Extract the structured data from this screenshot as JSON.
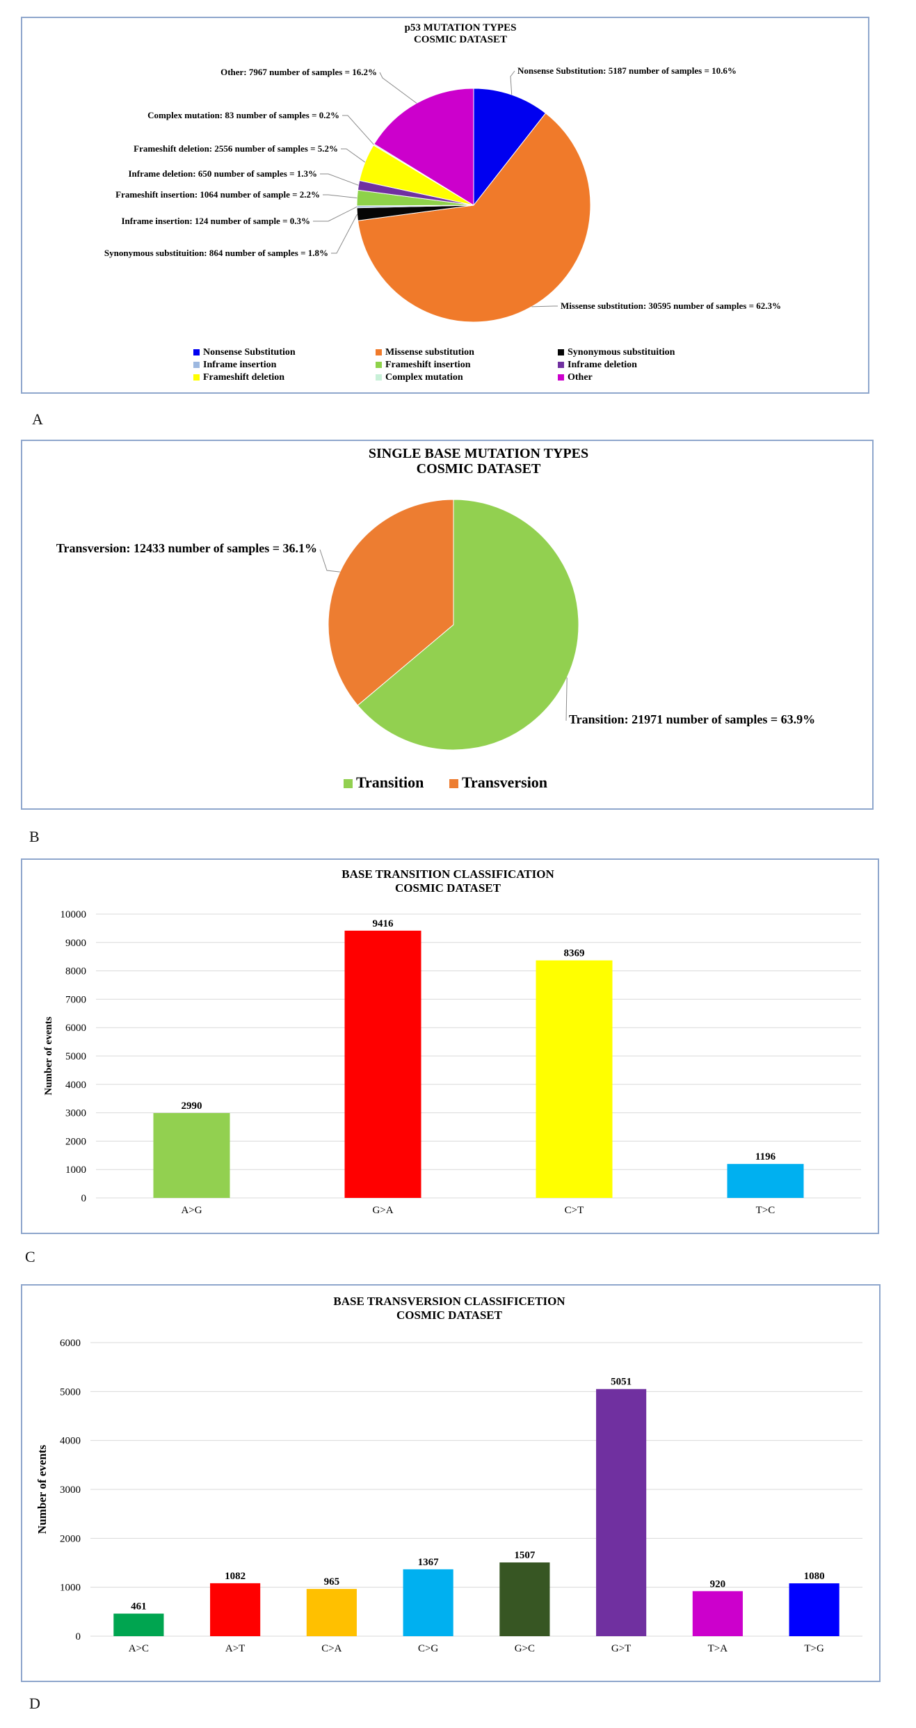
{
  "panel_labels": [
    "A",
    "B",
    "C",
    "D"
  ],
  "chart_data": [
    {
      "type": "pie",
      "title": "p53 MUTATION TYPES",
      "subtitle": "COSMIC DATASET",
      "legend_position": "bottom",
      "slices": [
        {
          "name": "Nonsense Substitution",
          "value": 5187,
          "percent": 10.6,
          "color": "#0000f0",
          "label": "Nonsense Substitution: 5187 number of samples = 10.6%"
        },
        {
          "name": "Missense substitution",
          "value": 30595,
          "percent": 62.3,
          "color": "#f07a2a",
          "label": "Missense substitution: 30595 number of samples = 62.3%"
        },
        {
          "name": "Synonymous substituition",
          "value": 864,
          "percent": 1.8,
          "color": "#050505",
          "label": "Synonymous substituition: 864 number of samples = 1.8%"
        },
        {
          "name": "Inframe insertion",
          "value": 124,
          "percent": 0.3,
          "color": "#9db8e0",
          "label": "Inframe insertion: 124 number of sample = 0.3%"
        },
        {
          "name": "Frameshift insertion",
          "value": 1064,
          "percent": 2.2,
          "color": "#8ed24a",
          "label": "Frameshift insertion: 1064 number of sample = 2.2%"
        },
        {
          "name": "Inframe deletion",
          "value": 650,
          "percent": 1.3,
          "color": "#7030a0",
          "label": "Inframe deletion: 650 number of samples = 1.3%"
        },
        {
          "name": "Frameshift deletion",
          "value": 2556,
          "percent": 5.2,
          "color": "#ffff00",
          "label": "Frameshift deletion: 2556 number of samples = 5.2%"
        },
        {
          "name": "Complex mutation",
          "value": 83,
          "percent": 0.2,
          "color": "#c8f0d8",
          "label": "Complex mutation: 83 number of samples = 0.2%"
        },
        {
          "name": "Other",
          "value": 7967,
          "percent": 16.2,
          "color": "#cc00cc",
          "label": "Other: 7967 number of samples = 16.2%"
        }
      ]
    },
    {
      "type": "pie",
      "title": "SINGLE BASE MUTATION TYPES",
      "subtitle": "COSMIC DATASET",
      "legend_position": "bottom",
      "slices": [
        {
          "name": "Transition",
          "value": 21971,
          "percent": 63.9,
          "color": "#92d050",
          "label": "Transition: 21971 number of samples = 63.9%"
        },
        {
          "name": "Transversion",
          "value": 12433,
          "percent": 36.1,
          "color": "#ed7d31",
          "label": "Transversion: 12433 number of samples = 36.1%"
        }
      ]
    },
    {
      "type": "bar",
      "title": "BASE TRANSITION CLASSIFICATION",
      "subtitle": "COSMIC DATASET",
      "ylabel": "Number of events",
      "xlabel": "",
      "ylim": [
        0,
        10000
      ],
      "yticks": [
        0,
        1000,
        2000,
        3000,
        4000,
        5000,
        6000,
        7000,
        8000,
        9000,
        10000
      ],
      "grid": true,
      "categories": [
        "A>G",
        "G>A",
        "C>T",
        "T>C"
      ],
      "values": [
        2990,
        9416,
        8369,
        1196
      ],
      "colors": [
        "#92d050",
        "#ff0000",
        "#ffff00",
        "#00b0f0"
      ]
    },
    {
      "type": "bar",
      "title": "BASE TRANSVERSION CLASSIFICETION",
      "subtitle": "COSMIC DATASET",
      "ylabel": "Number of events",
      "xlabel": "",
      "ylim": [
        0,
        6000
      ],
      "yticks": [
        0,
        1000,
        2000,
        3000,
        4000,
        5000,
        6000
      ],
      "grid": true,
      "categories": [
        "A>C",
        "A>T",
        "C>A",
        "C>G",
        "G>C",
        "G>T",
        "T>A",
        "T>G"
      ],
      "values": [
        461,
        1082,
        965,
        1367,
        1507,
        5051,
        920,
        1080
      ],
      "colors": [
        "#00a550",
        "#ff0000",
        "#ffc000",
        "#00b0f0",
        "#375623",
        "#7030a0",
        "#cc00cc",
        "#0000ff"
      ]
    }
  ]
}
